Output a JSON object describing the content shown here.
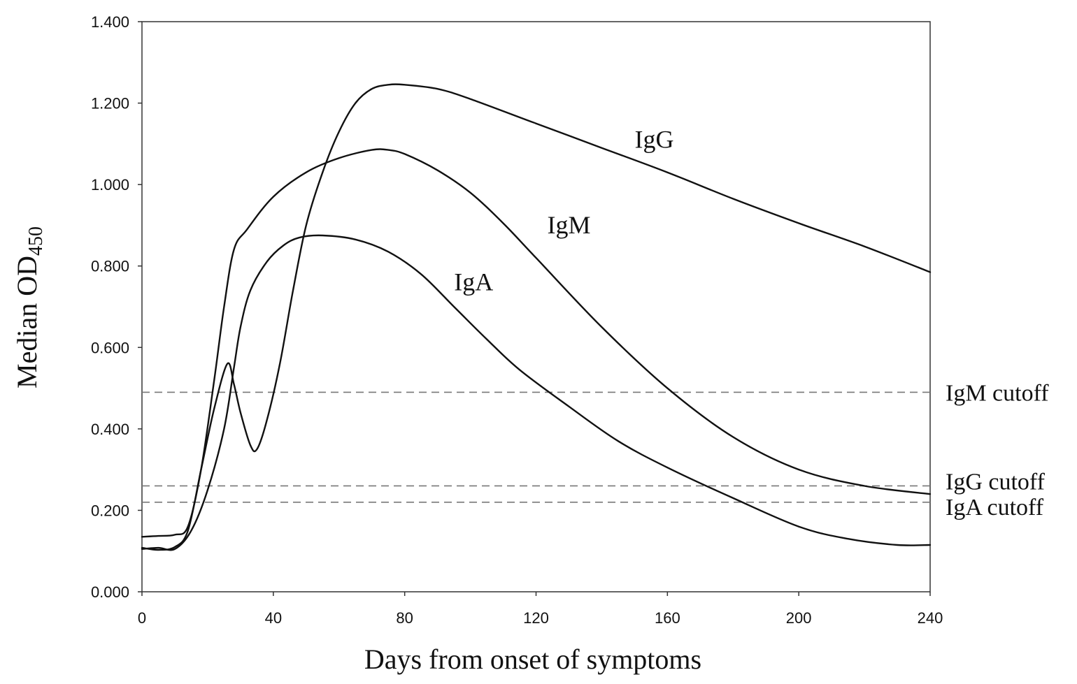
{
  "chart_data": {
    "type": "line",
    "title": "",
    "xlabel": "Days from onset of symptoms",
    "ylabel_main": "Median OD",
    "ylabel_sub": "450",
    "xlim": [
      0,
      240
    ],
    "ylim": [
      0,
      1.4
    ],
    "grid": false,
    "x_ticks": [
      0,
      40,
      80,
      120,
      160,
      200,
      240
    ],
    "x_tick_labels": [
      "0",
      "40",
      "80",
      "120",
      "160",
      "200",
      "240"
    ],
    "y_ticks": [
      0,
      0.2,
      0.4,
      0.6,
      0.8,
      1.0,
      1.2,
      1.4
    ],
    "y_tick_labels": [
      "0.000",
      "0.200",
      "0.400",
      "0.600",
      "0.800",
      "1.000",
      "1.200",
      "1.400"
    ],
    "series": [
      {
        "name": "IgG",
        "color": "#111111",
        "label_at": [
          156,
          1.09
        ],
        "points": [
          [
            0,
            0.108
          ],
          [
            5,
            0.103
          ],
          [
            10,
            0.11
          ],
          [
            14,
            0.15
          ],
          [
            18,
            0.3
          ],
          [
            22,
            0.45
          ],
          [
            26,
            0.56
          ],
          [
            28,
            0.51
          ],
          [
            30,
            0.44
          ],
          [
            33,
            0.36
          ],
          [
            35,
            0.35
          ],
          [
            38,
            0.42
          ],
          [
            42,
            0.56
          ],
          [
            46,
            0.74
          ],
          [
            50,
            0.9
          ],
          [
            55,
            1.03
          ],
          [
            60,
            1.13
          ],
          [
            65,
            1.2
          ],
          [
            70,
            1.235
          ],
          [
            75,
            1.245
          ],
          [
            80,
            1.245
          ],
          [
            90,
            1.235
          ],
          [
            100,
            1.21
          ],
          [
            120,
            1.15
          ],
          [
            140,
            1.09
          ],
          [
            160,
            1.03
          ],
          [
            180,
            0.965
          ],
          [
            200,
            0.905
          ],
          [
            220,
            0.848
          ],
          [
            240,
            0.785
          ]
        ]
      },
      {
        "name": "IgM",
        "color": "#111111",
        "label_at": [
          130,
          0.88
        ],
        "points": [
          [
            0,
            0.135
          ],
          [
            5,
            0.137
          ],
          [
            10,
            0.14
          ],
          [
            14,
            0.16
          ],
          [
            18,
            0.3
          ],
          [
            22,
            0.52
          ],
          [
            25,
            0.7
          ],
          [
            28,
            0.84
          ],
          [
            32,
            0.89
          ],
          [
            40,
            0.97
          ],
          [
            50,
            1.03
          ],
          [
            60,
            1.065
          ],
          [
            70,
            1.085
          ],
          [
            75,
            1.085
          ],
          [
            80,
            1.075
          ],
          [
            90,
            1.035
          ],
          [
            100,
            0.98
          ],
          [
            110,
            0.905
          ],
          [
            120,
            0.82
          ],
          [
            140,
            0.65
          ],
          [
            160,
            0.5
          ],
          [
            180,
            0.38
          ],
          [
            200,
            0.3
          ],
          [
            220,
            0.26
          ],
          [
            240,
            0.24
          ]
        ]
      },
      {
        "name": "IgA",
        "color": "#111111",
        "label_at": [
          101,
          0.74
        ],
        "points": [
          [
            0,
            0.105
          ],
          [
            5,
            0.108
          ],
          [
            10,
            0.105
          ],
          [
            15,
            0.15
          ],
          [
            20,
            0.25
          ],
          [
            25,
            0.4
          ],
          [
            28,
            0.55
          ],
          [
            30,
            0.65
          ],
          [
            33,
            0.74
          ],
          [
            38,
            0.81
          ],
          [
            43,
            0.85
          ],
          [
            48,
            0.87
          ],
          [
            55,
            0.875
          ],
          [
            65,
            0.865
          ],
          [
            75,
            0.835
          ],
          [
            85,
            0.78
          ],
          [
            95,
            0.7
          ],
          [
            105,
            0.62
          ],
          [
            115,
            0.545
          ],
          [
            130,
            0.455
          ],
          [
            145,
            0.37
          ],
          [
            160,
            0.305
          ],
          [
            180,
            0.23
          ],
          [
            200,
            0.16
          ],
          [
            215,
            0.13
          ],
          [
            230,
            0.115
          ],
          [
            240,
            0.115
          ]
        ]
      }
    ],
    "cutoffs": [
      {
        "name": "IgM cutoff",
        "value": 0.49
      },
      {
        "name": "IgG cutoff",
        "value": 0.26
      },
      {
        "name": "IgA cutoff",
        "value": 0.22
      }
    ]
  }
}
